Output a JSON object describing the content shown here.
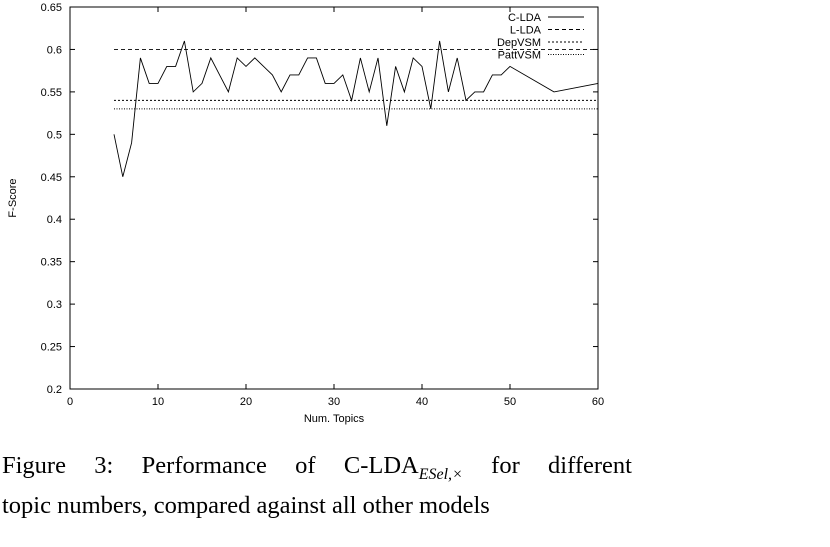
{
  "chart_data": {
    "type": "line",
    "title": "",
    "xlabel": "Num. Topics",
    "ylabel": "F-Score",
    "xlim": [
      0,
      60
    ],
    "ylim": [
      0.2,
      0.65
    ],
    "x_ticks": [
      "0",
      "10",
      "20",
      "30",
      "40",
      "50",
      "60"
    ],
    "y_ticks": [
      "0.2",
      "0.25",
      "0.3",
      "0.35",
      "0.4",
      "0.45",
      "0.5",
      "0.55",
      "0.6",
      "0.65"
    ],
    "grid": false,
    "legend_position": "top-right",
    "series": [
      {
        "name": "C-LDA",
        "style": "solid",
        "x": [
          5,
          6,
          7,
          8,
          9,
          10,
          11,
          12,
          13,
          14,
          15,
          16,
          17,
          18,
          19,
          20,
          21,
          22,
          23,
          24,
          25,
          26,
          27,
          28,
          29,
          30,
          31,
          32,
          33,
          34,
          35,
          36,
          37,
          38,
          39,
          40,
          41,
          42,
          43,
          44,
          45,
          46,
          47,
          48,
          49,
          50,
          55,
          60
        ],
        "y": [
          0.5,
          0.45,
          0.49,
          0.59,
          0.56,
          0.56,
          0.58,
          0.58,
          0.61,
          0.55,
          0.56,
          0.59,
          0.57,
          0.55,
          0.59,
          0.58,
          0.59,
          0.58,
          0.57,
          0.55,
          0.57,
          0.57,
          0.59,
          0.59,
          0.56,
          0.56,
          0.57,
          0.54,
          0.59,
          0.55,
          0.59,
          0.51,
          0.58,
          0.55,
          0.59,
          0.58,
          0.53,
          0.61,
          0.55,
          0.59,
          0.54,
          0.55,
          0.55,
          0.57,
          0.57,
          0.58,
          0.55,
          0.56
        ]
      },
      {
        "name": "L-LDA",
        "style": "dashed",
        "x": [
          5,
          60
        ],
        "y": [
          0.6,
          0.6
        ]
      },
      {
        "name": "DepVSM",
        "style": "dense-dashed",
        "x": [
          5,
          60
        ],
        "y": [
          0.54,
          0.54
        ]
      },
      {
        "name": "PattVSM",
        "style": "dotted",
        "x": [
          5,
          60
        ],
        "y": [
          0.53,
          0.53
        ]
      }
    ]
  },
  "caption": {
    "words": [
      "Figure",
      "3:",
      "Performance",
      "of",
      "C-LDA"
    ],
    "subscript": "ESel,×",
    "words_after": [
      "for",
      "different"
    ],
    "line2": "topic numbers, compared against all other models"
  }
}
